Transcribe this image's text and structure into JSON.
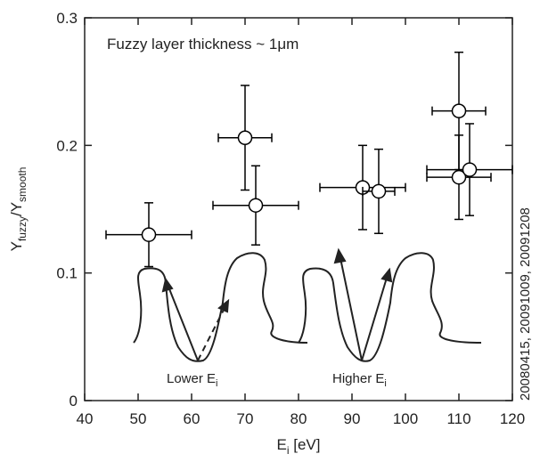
{
  "chart_data": {
    "type": "scatter",
    "title": "Fuzzy layer thickness ~ 1μm",
    "x_label": [
      "E",
      "i",
      " [eV]"
    ],
    "y_label": [
      "Y",
      "fuzzy",
      "/Y",
      "smooth"
    ],
    "annotations": {
      "lower": [
        "Lower E",
        "i"
      ],
      "higher": [
        "Higher E",
        "i"
      ],
      "dates": "20080415, 20091009, 20091208"
    },
    "xlim": [
      40,
      120
    ],
    "xticks": [
      40,
      50,
      60,
      70,
      80,
      90,
      100,
      110,
      120
    ],
    "ylim": [
      0,
      0.3
    ],
    "yticks": [
      0,
      0.1,
      0.2,
      0.3
    ],
    "series": [
      {
        "color": "#000000",
        "x": [
          52,
          70,
          72,
          92,
          95,
          110,
          110,
          112
        ],
        "values": [
          0.13,
          0.206,
          0.153,
          0.167,
          0.164,
          0.227,
          0.175,
          0.181
        ],
        "xerr": [
          8,
          5,
          8,
          8,
          3,
          5,
          6,
          8
        ],
        "yerr": [
          0.025,
          0.041,
          0.031,
          0.033,
          0.033,
          0.046,
          0.033,
          0.036
        ]
      }
    ]
  }
}
